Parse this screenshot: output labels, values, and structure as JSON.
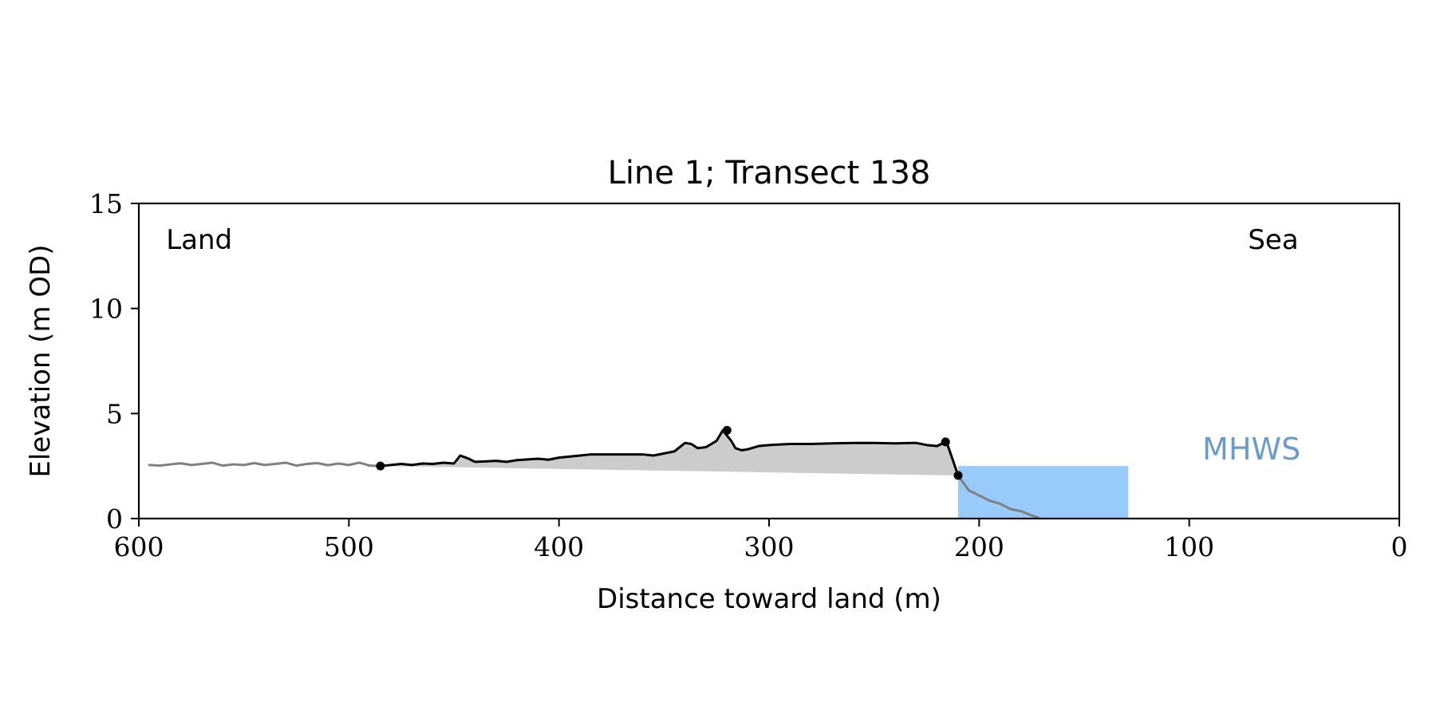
{
  "chart_data": {
    "type": "area",
    "title": "Line 1; Transect 138",
    "xlabel": "Distance toward land (m)",
    "ylabel": "Elevation (m OD)",
    "xlim": [
      600,
      0
    ],
    "ylim": [
      0,
      15
    ],
    "x_reversed": true,
    "xticks": [
      600,
      500,
      400,
      300,
      200,
      100,
      0
    ],
    "yticks": [
      0,
      5,
      10,
      15
    ],
    "grid": false,
    "annotations": [
      {
        "text": "Land",
        "x": 587,
        "y": 13.3
      },
      {
        "text": "Sea",
        "x": 60,
        "y": 13.3
      },
      {
        "text": "MHWS",
        "x": 47,
        "y": 3.3,
        "color": "#6a9ccb"
      }
    ],
    "colors": {
      "profile": "#000000",
      "context": "#808080",
      "fill": "#cccccc",
      "water": "#99cbfa",
      "mhws": "#6a9ccb"
    },
    "water": {
      "x_from": 210,
      "x_to": 129,
      "y_from": 0,
      "y_to": 2.5
    },
    "context_profile_landward": {
      "x": [
        595,
        590,
        585,
        580,
        575,
        570,
        565,
        560,
        555,
        550,
        545,
        540,
        535,
        530,
        525,
        520,
        515,
        510,
        505,
        500,
        495,
        490,
        485
      ],
      "y": [
        2.55,
        2.52,
        2.58,
        2.63,
        2.55,
        2.6,
        2.66,
        2.52,
        2.58,
        2.55,
        2.64,
        2.55,
        2.6,
        2.66,
        2.52,
        2.6,
        2.64,
        2.54,
        2.62,
        2.55,
        2.66,
        2.52,
        2.5
      ]
    },
    "context_profile_seaward": {
      "x": [
        210,
        205,
        200,
        195,
        190,
        185,
        180,
        175,
        172
      ],
      "y": [
        2.05,
        1.35,
        1.1,
        0.85,
        0.7,
        0.45,
        0.35,
        0.15,
        0.05
      ]
    },
    "profile": {
      "x": [
        485,
        480,
        475,
        470,
        465,
        460,
        455,
        450,
        447,
        443,
        440,
        435,
        430,
        425,
        420,
        410,
        405,
        400,
        390,
        385,
        380,
        370,
        360,
        355,
        350,
        345,
        340,
        337,
        334,
        330,
        325,
        322,
        318,
        316,
        313,
        310,
        305,
        300,
        290,
        280,
        270,
        260,
        250,
        240,
        230,
        225,
        220,
        216,
        215,
        210
      ],
      "y": [
        2.5,
        2.55,
        2.6,
        2.55,
        2.62,
        2.6,
        2.66,
        2.62,
        3.0,
        2.85,
        2.7,
        2.72,
        2.75,
        2.7,
        2.78,
        2.85,
        2.8,
        2.9,
        3.0,
        3.05,
        3.05,
        3.05,
        3.05,
        3.0,
        3.1,
        3.2,
        3.6,
        3.55,
        3.35,
        3.4,
        3.7,
        4.2,
        3.7,
        3.35,
        3.25,
        3.3,
        3.45,
        3.5,
        3.55,
        3.55,
        3.58,
        3.6,
        3.6,
        3.58,
        3.6,
        3.5,
        3.45,
        3.65,
        3.5,
        2.05
      ]
    },
    "profile_markers": [
      {
        "x": 485,
        "y": 2.5
      },
      {
        "x": 320,
        "y": 4.2
      },
      {
        "x": 216,
        "y": 3.65
      },
      {
        "x": 210,
        "y": 2.05
      }
    ]
  }
}
